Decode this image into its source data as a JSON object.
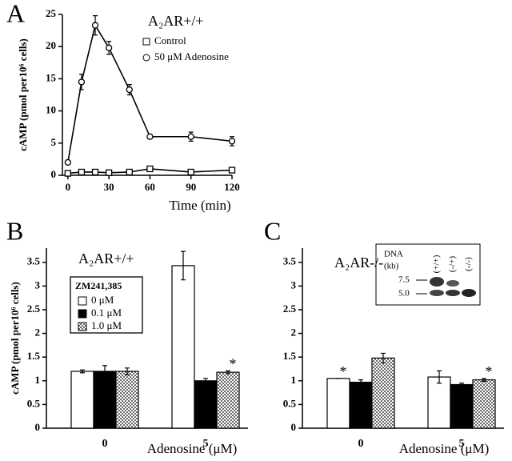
{
  "chart_data": [
    {
      "type": "line",
      "label": "A",
      "title": "A₂AR+/+",
      "x_label": "Time (min)",
      "y_label": "cAMP (pmol per10⁶ cells)",
      "x": [
        0,
        10,
        20,
        30,
        45,
        60,
        90,
        120
      ],
      "series": [
        {
          "name": "Control",
          "marker": "square",
          "color": "#000000",
          "values": [
            0.3,
            0.5,
            0.5,
            0.4,
            0.5,
            1.0,
            0.5,
            0.8
          ],
          "errors": [
            0,
            0,
            0,
            0,
            0,
            0.2,
            0,
            0.2
          ]
        },
        {
          "name": "50 μM Adenosine",
          "marker": "circle",
          "color": "#000000",
          "values": [
            2,
            14.5,
            23.3,
            19.8,
            13.3,
            6,
            6,
            5.3
          ],
          "errors": [
            0,
            1.2,
            1.5,
            1,
            0.8,
            0,
            0.7,
            0.7
          ]
        }
      ],
      "xlim": [
        -4,
        120
      ],
      "xticks": [
        0,
        30,
        60,
        90,
        120
      ],
      "ylim": [
        0,
        25
      ],
      "yticks": [
        0,
        5,
        10,
        15,
        20,
        25
      ]
    },
    {
      "type": "bar",
      "label": "B",
      "title": "A₂AR+/+",
      "x_label": "Adenosine (μM)",
      "y_label": "cAMP (pmol per10⁶ cells)",
      "legend_title": "ZM241,385",
      "categories": [
        "0",
        "5"
      ],
      "series": [
        {
          "name": "0 μM",
          "fill": "white",
          "values": [
            1.2,
            3.43
          ],
          "errors": [
            0.03,
            0.3
          ],
          "annotations": [
            null,
            null
          ]
        },
        {
          "name": "0.1 μM",
          "fill": "black",
          "values": [
            1.2,
            1.0
          ],
          "errors": [
            0.12,
            0.05
          ],
          "annotations": [
            null,
            null
          ]
        },
        {
          "name": "1.0 μM",
          "fill": "dotted",
          "values": [
            1.2,
            1.18
          ],
          "errors": [
            0.07,
            0.03
          ],
          "annotations": [
            null,
            "*"
          ]
        }
      ],
      "ylim": [
        0,
        3.8
      ],
      "yticks": [
        0,
        0.5,
        1,
        1.5,
        2,
        2.5,
        3,
        3.5
      ]
    },
    {
      "type": "bar",
      "label": "C",
      "title": "A₂AR-/-",
      "x_label": "Adenosine (μM)",
      "categories": [
        "0",
        "5"
      ],
      "series": [
        {
          "fill": "white",
          "values": [
            1.05,
            1.08
          ],
          "errors": [
            0,
            0.13
          ],
          "annotations": [
            "*",
            null
          ]
        },
        {
          "fill": "black",
          "values": [
            0.97,
            0.92
          ],
          "errors": [
            0.05,
            0.03
          ],
          "annotations": [
            null,
            null
          ]
        },
        {
          "fill": "dotted",
          "values": [
            1.48,
            1.02
          ],
          "errors": [
            0.1,
            0.03
          ],
          "annotations": [
            null,
            "*"
          ]
        }
      ],
      "ylim": [
        0,
        3.8
      ],
      "yticks": [
        0,
        0.5,
        1,
        1.5,
        2,
        2.5,
        3,
        3.5
      ],
      "inset": {
        "title": [
          "DNA",
          "(kb)"
        ],
        "sizes": [
          "7.5",
          "5.0"
        ],
        "lanes": [
          "(+/+)",
          "(-/+)",
          "(-/-)"
        ]
      }
    }
  ]
}
